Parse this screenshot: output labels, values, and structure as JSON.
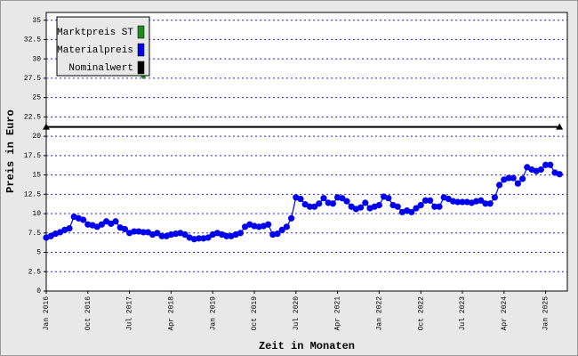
{
  "chart_data": {
    "type": "line",
    "ylabel": "Preis in Euro",
    "xlabel": "Zeit in Monaten",
    "categories": [
      "Jan 2016",
      null,
      null,
      null,
      null,
      null,
      null,
      null,
      null,
      "Oct 2016",
      null,
      null,
      null,
      null,
      null,
      null,
      null,
      null,
      "Jul 2017",
      null,
      null,
      null,
      null,
      null,
      null,
      null,
      null,
      "Apr 2018",
      null,
      null,
      null,
      null,
      null,
      null,
      null,
      null,
      "Jan 2019",
      null,
      null,
      null,
      null,
      null,
      null,
      null,
      null,
      "Oct 2019",
      null,
      null,
      null,
      null,
      null,
      null,
      null,
      null,
      "Jul 2020",
      null,
      null,
      null,
      null,
      null,
      null,
      null,
      null,
      "Apr 2021",
      null,
      null,
      null,
      null,
      null,
      null,
      null,
      null,
      "Jan 2022",
      null,
      null,
      null,
      null,
      null,
      null,
      null,
      null,
      "Oct 2022",
      null,
      null,
      null,
      null,
      null,
      null,
      null,
      null,
      "Jul 2023",
      null,
      null,
      null,
      null,
      null,
      null,
      null,
      null,
      "Apr 2024",
      null,
      null,
      null,
      null,
      null,
      null,
      null,
      null,
      "Jan 2025",
      null,
      null,
      null
    ],
    "series": [
      {
        "name": "Marktpreis ST",
        "color": "#1a8f1a",
        "marker": "diamond",
        "line": false,
        "values": [
          null,
          null,
          null,
          null,
          null,
          null,
          null,
          null,
          null,
          null,
          null,
          null,
          null,
          null,
          null,
          null,
          null,
          null,
          null,
          null,
          null,
          27.7,
          null,
          null,
          null,
          null,
          null,
          null,
          null,
          null,
          null,
          null,
          null,
          null,
          null,
          null,
          null,
          null,
          null,
          null,
          null,
          null,
          null,
          null,
          null,
          null,
          null,
          null,
          null,
          null,
          null,
          null,
          null,
          null,
          null,
          null,
          null,
          null,
          null,
          null,
          null,
          null,
          null,
          null,
          null,
          null,
          null,
          null,
          null,
          null,
          null,
          null,
          null,
          null,
          null,
          null,
          null,
          null,
          null,
          null,
          null,
          null,
          null,
          null,
          null,
          null,
          null,
          null,
          null,
          null,
          null,
          null,
          null,
          null,
          null,
          null,
          null,
          null,
          null,
          null,
          null,
          null,
          null,
          null,
          null,
          null,
          null,
          null,
          null,
          null,
          null,
          null
        ]
      },
      {
        "name": "Materialpreis",
        "color": "#0000ee",
        "marker": "circle",
        "line": true,
        "values": [
          6.9,
          7.1,
          7.4,
          7.6,
          7.9,
          8.1,
          9.6,
          9.4,
          9.2,
          8.6,
          8.5,
          8.3,
          8.6,
          9.0,
          8.7,
          9.0,
          8.2,
          8.0,
          7.5,
          7.7,
          7.7,
          7.6,
          7.6,
          7.3,
          7.5,
          7.1,
          7.1,
          7.3,
          7.4,
          7.5,
          7.3,
          6.9,
          6.7,
          6.8,
          6.8,
          6.9,
          7.3,
          7.5,
          7.3,
          7.1,
          7.1,
          7.3,
          7.5,
          8.3,
          8.6,
          8.4,
          8.3,
          8.4,
          8.6,
          7.3,
          7.4,
          7.9,
          8.3,
          9.4,
          12.1,
          11.9,
          11.2,
          10.9,
          10.9,
          11.3,
          12.0,
          11.4,
          11.3,
          12.1,
          12.0,
          11.6,
          10.9,
          10.6,
          10.8,
          11.4,
          10.7,
          10.9,
          11.1,
          12.2,
          12.0,
          11.1,
          10.9,
          10.2,
          10.4,
          10.2,
          10.7,
          11.1,
          11.7,
          11.7,
          10.9,
          10.9,
          12.1,
          11.9,
          11.6,
          11.5,
          11.5,
          11.5,
          11.4,
          11.6,
          11.7,
          11.3,
          11.3,
          12.1,
          13.7,
          14.4,
          14.6,
          14.6,
          13.9,
          14.5,
          16.0,
          15.7,
          15.5,
          15.7,
          16.3,
          16.3,
          15.3,
          15.1
        ]
      },
      {
        "name": "Nominalwert",
        "color": "#000000",
        "marker": "triangle-ends",
        "line": true,
        "values": [
          21.2,
          21.2,
          21.2,
          21.2,
          21.2,
          21.2,
          21.2,
          21.2,
          21.2,
          21.2,
          21.2,
          21.2,
          21.2,
          21.2,
          21.2,
          21.2,
          21.2,
          21.2,
          21.2,
          21.2,
          21.2,
          21.2,
          21.2,
          21.2,
          21.2,
          21.2,
          21.2,
          21.2,
          21.2,
          21.2,
          21.2,
          21.2,
          21.2,
          21.2,
          21.2,
          21.2,
          21.2,
          21.2,
          21.2,
          21.2,
          21.2,
          21.2,
          21.2,
          21.2,
          21.2,
          21.2,
          21.2,
          21.2,
          21.2,
          21.2,
          21.2,
          21.2,
          21.2,
          21.2,
          21.2,
          21.2,
          21.2,
          21.2,
          21.2,
          21.2,
          21.2,
          21.2,
          21.2,
          21.2,
          21.2,
          21.2,
          21.2,
          21.2,
          21.2,
          21.2,
          21.2,
          21.2,
          21.2,
          21.2,
          21.2,
          21.2,
          21.2,
          21.2,
          21.2,
          21.2,
          21.2,
          21.2,
          21.2,
          21.2,
          21.2,
          21.2,
          21.2,
          21.2,
          21.2,
          21.2,
          21.2,
          21.2,
          21.2,
          21.2,
          21.2,
          21.2,
          21.2,
          21.2,
          21.2,
          21.2,
          21.2,
          21.2,
          21.2,
          21.2,
          21.2,
          21.2,
          21.2,
          21.2,
          21.2,
          21.2,
          21.2,
          21.2
        ]
      }
    ],
    "ylim": [
      0,
      36
    ],
    "yticks": [
      0,
      2.5,
      5,
      7.5,
      10,
      12.5,
      15,
      17.5,
      20,
      22.5,
      25,
      27.5,
      30,
      32.5,
      35
    ],
    "grid": true,
    "legend": "top-left"
  }
}
